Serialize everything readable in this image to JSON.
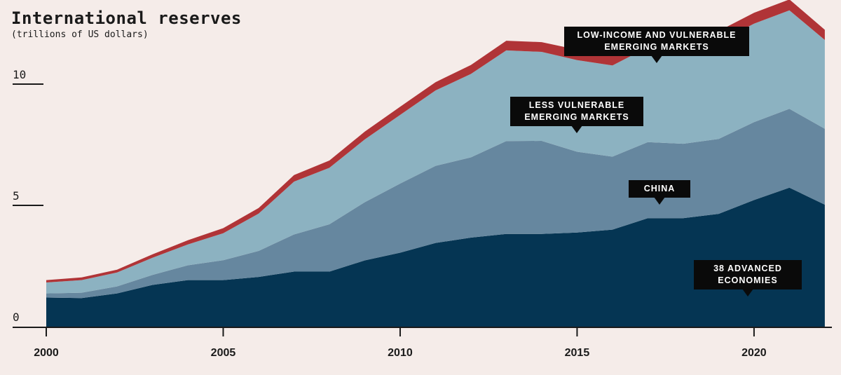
{
  "title": "International reserves",
  "subtitle": "(trillions of US dollars)",
  "colors": {
    "background": "#f5ece9",
    "advanced": "#053553",
    "china": "#66879f",
    "less_vulnerable": "#8cb2c1",
    "low_income": "#b03437",
    "callout": "#0a0a0a"
  },
  "chart_data": {
    "type": "area",
    "stacked": true,
    "x": [
      2000,
      2001,
      2002,
      2003,
      2004,
      2005,
      2006,
      2007,
      2008,
      2009,
      2010,
      2011,
      2012,
      2013,
      2014,
      2015,
      2016,
      2017,
      2018,
      2019,
      2020,
      2021,
      2022
    ],
    "xticks": [
      "2000",
      "2005",
      "2010",
      "2015",
      "2020"
    ],
    "yticks": [
      "0",
      "5",
      "10"
    ],
    "ylim": [
      0,
      12.5
    ],
    "xlim": [
      2000,
      2022.2
    ],
    "series": [
      {
        "name": "38 ADVANCED ECONOMIES",
        "key": "advanced",
        "values": [
          1.2,
          1.18,
          1.37,
          1.72,
          1.92,
          1.92,
          2.05,
          2.27,
          2.27,
          2.73,
          3.05,
          3.45,
          3.67,
          3.82,
          3.82,
          3.88,
          4.0,
          4.47,
          4.47,
          4.65,
          5.22,
          5.73,
          5.03
        ]
      },
      {
        "name": "CHINA",
        "key": "china",
        "values": [
          0.17,
          0.22,
          0.29,
          0.41,
          0.61,
          0.82,
          1.07,
          1.53,
          1.95,
          2.4,
          2.85,
          3.18,
          3.31,
          3.83,
          3.84,
          3.33,
          3.01,
          3.14,
          3.07,
          3.09,
          3.21,
          3.25,
          3.13
        ]
      },
      {
        "name": "LESS VULNERABLE EMERGING MARKETS",
        "key": "less_vulnerable",
        "values": [
          0.45,
          0.52,
          0.57,
          0.71,
          0.86,
          1.11,
          1.54,
          2.18,
          2.33,
          2.59,
          2.83,
          3.11,
          3.44,
          3.74,
          3.67,
          3.78,
          3.76,
          3.91,
          3.86,
          4.0,
          4.06,
          4.06,
          3.66
        ]
      },
      {
        "name": "LOW-INCOME AND VULNERABLE EMERGING MARKETS",
        "key": "low_income",
        "values": [
          0.1,
          0.11,
          0.12,
          0.14,
          0.17,
          0.21,
          0.23,
          0.27,
          0.3,
          0.32,
          0.34,
          0.34,
          0.37,
          0.4,
          0.4,
          0.43,
          0.43,
          0.45,
          0.45,
          0.45,
          0.45,
          0.45,
          0.42
        ]
      }
    ],
    "callouts": [
      {
        "series": "low_income",
        "lines": [
          "LOW-INCOME AND VULNERABLE",
          "EMERGING MARKETS"
        ]
      },
      {
        "series": "less_vulnerable",
        "lines": [
          "LESS VULNERABLE",
          "EMERGING MARKETS"
        ]
      },
      {
        "series": "china",
        "lines": [
          "CHINA"
        ]
      },
      {
        "series": "advanced",
        "lines": [
          "38 ADVANCED",
          "ECONOMIES"
        ]
      }
    ]
  }
}
